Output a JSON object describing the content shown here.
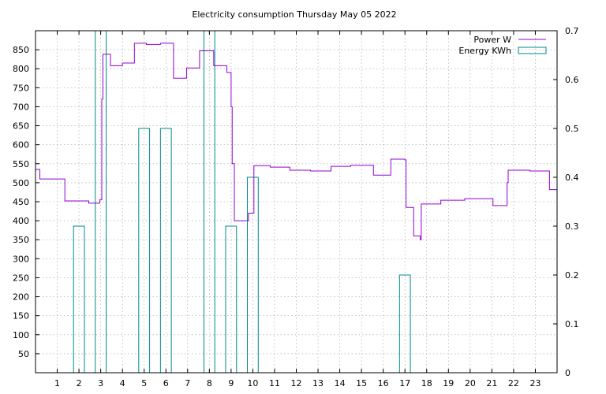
{
  "chart_data": {
    "type": "line",
    "title": "Electricity consumption Thursday May 05 2022",
    "xlabel": "",
    "ylabel": "",
    "y2label": "",
    "xlim": [
      0,
      24
    ],
    "ylim": [
      0,
      900
    ],
    "y2lim": [
      0,
      0.7
    ],
    "grid": true,
    "legend_position": "top-right",
    "x_ticks": [
      1,
      2,
      3,
      4,
      5,
      6,
      7,
      8,
      9,
      10,
      11,
      12,
      13,
      14,
      15,
      16,
      17,
      18,
      19,
      20,
      21,
      22,
      23
    ],
    "x_tick_labels": [
      "1",
      "2",
      "3",
      "4",
      "5",
      "6",
      "7",
      "8",
      "9",
      "10",
      "11",
      "12",
      "13",
      "14",
      "15",
      "16",
      "17",
      "18",
      "19",
      "20",
      "21",
      "22",
      "23"
    ],
    "y_ticks": [
      50,
      100,
      150,
      200,
      250,
      300,
      350,
      400,
      450,
      500,
      550,
      600,
      650,
      700,
      750,
      800,
      850
    ],
    "y_tick_labels": [
      "50",
      "100",
      "150",
      "200",
      "250",
      "300",
      "350",
      "400",
      "450",
      "500",
      "550",
      "600",
      "650",
      "700",
      "750",
      "800",
      "850"
    ],
    "y2_ticks": [
      0,
      0.1,
      0.2,
      0.3,
      0.4,
      0.5,
      0.6,
      0.7
    ],
    "y2_tick_labels": [
      "0",
      "0.1",
      "0.2",
      "0.3",
      "0.4",
      "0.5",
      "0.6",
      "0.7"
    ],
    "series": [
      {
        "name": "Power W",
        "axis": "left",
        "style": "steps",
        "color": "#9400d3",
        "x": [
          0,
          0.2,
          1.35,
          2.45,
          2.95,
          3.05,
          3.1,
          3.45,
          4.0,
          4.55,
          5.1,
          5.75,
          6.35,
          6.95,
          7.55,
          8.2,
          8.8,
          9.0,
          9.05,
          9.15,
          9.8,
          10.05,
          10.8,
          11.7,
          12.65,
          13.6,
          14.5,
          15.55,
          16.35,
          17.0,
          17.05,
          17.4,
          17.7,
          17.75,
          18.65,
          19.75,
          21.05,
          21.7,
          21.75,
          22.75,
          23.65,
          24.0
        ],
        "y": [
          535,
          510,
          452,
          446,
          455,
          720,
          838,
          808,
          815,
          867,
          864,
          867,
          775,
          802,
          847,
          808,
          790,
          700,
          550,
          400,
          420,
          545,
          541,
          533,
          531,
          543,
          546,
          520,
          562,
          560,
          435,
          360,
          350,
          444,
          454,
          458,
          440,
          500,
          533,
          531,
          482,
          482
        ]
      },
      {
        "name": "Energy KWh",
        "axis": "right",
        "style": "histeps",
        "color": "#008b8b",
        "x": [
          0,
          1,
          2,
          3,
          4,
          5,
          6,
          7,
          8,
          9,
          10,
          11,
          12,
          13,
          14,
          15,
          16,
          17,
          18,
          19,
          20,
          21,
          22,
          23
        ],
        "y": [
          0,
          0,
          0.3,
          0.7,
          0,
          0.5,
          0.5,
          0,
          0.7,
          0.3,
          0.4,
          0,
          0,
          0,
          0,
          0,
          0,
          0.2,
          0,
          0,
          0,
          0,
          0,
          0
        ]
      }
    ]
  }
}
